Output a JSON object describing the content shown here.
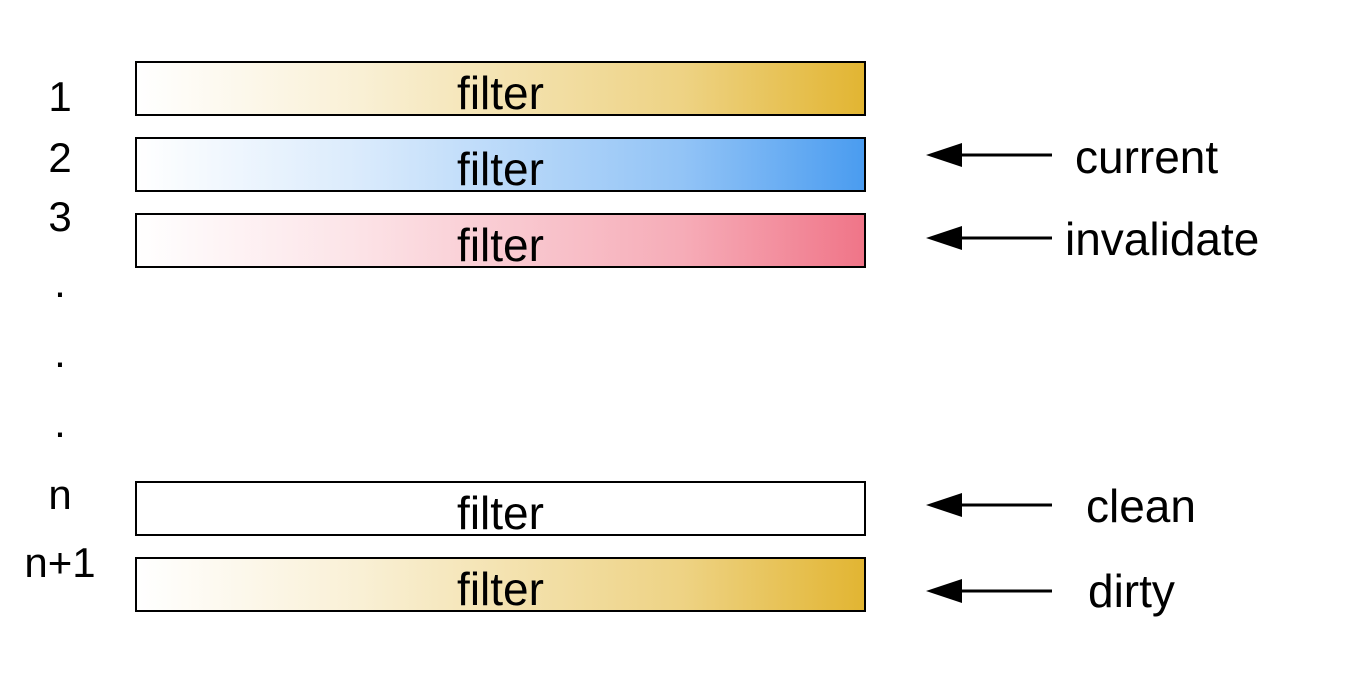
{
  "rows": [
    {
      "index": "1",
      "filter_label": "filter",
      "state": "dirty",
      "arrow_label": ""
    },
    {
      "index": "2",
      "filter_label": "filter",
      "state": "current",
      "arrow_label": "current"
    },
    {
      "index": "3",
      "filter_label": "filter",
      "state": "invalidate",
      "arrow_label": "invalidate"
    },
    {
      "index": "n",
      "filter_label": "filter",
      "state": "clean",
      "arrow_label": "clean"
    },
    {
      "index": "n+1",
      "filter_label": "filter",
      "state": "dirty",
      "arrow_label": "dirty"
    }
  ],
  "ellipsis": [
    ".",
    ".",
    "."
  ],
  "colors": {
    "dirty": "#e2b532",
    "current": "#4a9cf0",
    "invalidate": "#f07588",
    "clean": "#ffffff",
    "border": "#000000"
  }
}
